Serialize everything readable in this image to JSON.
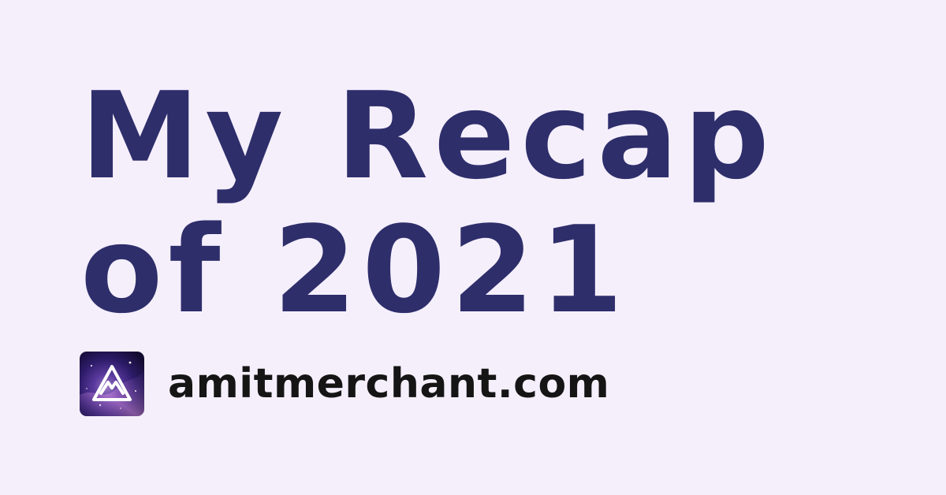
{
  "card": {
    "title_line_1": "My Recap",
    "title_line_2": "of 2021",
    "site_name": "amitmerchant.com",
    "logo_icon": "mountain-triangle-logo-icon"
  },
  "colors": {
    "background": "#f5effc",
    "title": "#2e2e6b",
    "site_name": "#151515",
    "logo_background": "#2b175a"
  }
}
